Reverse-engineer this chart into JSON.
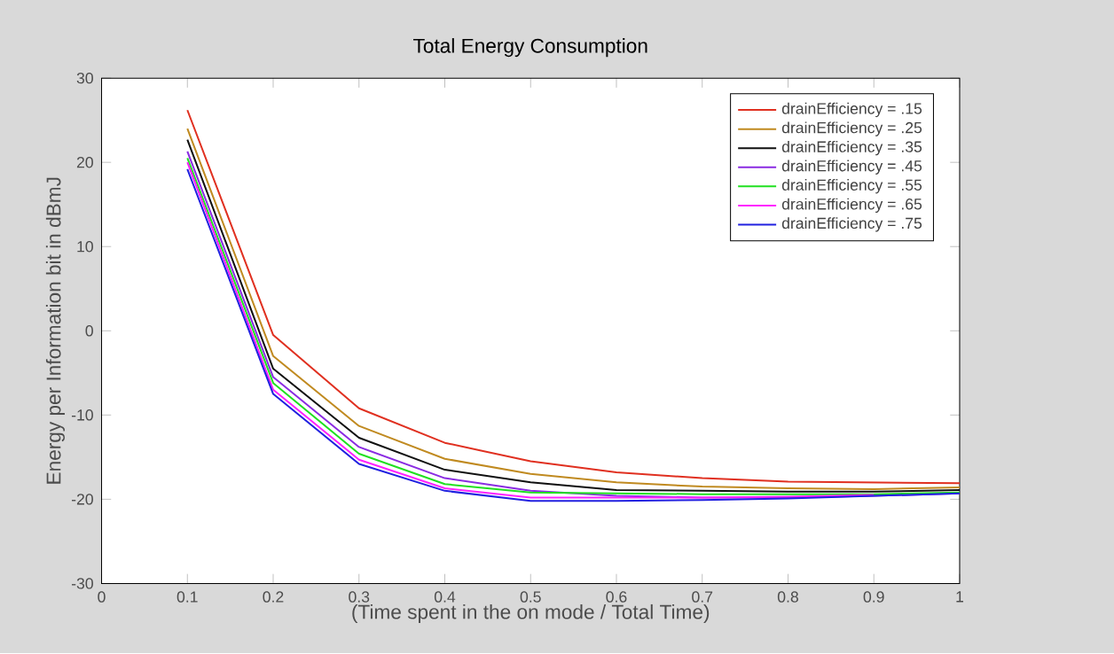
{
  "chart_data": {
    "type": "line",
    "title": "Total Energy Consumption",
    "xlabel": "(Time spent in the on mode / Total Time)",
    "ylabel": "Energy per Information bit in dBmJ",
    "x": [
      0.1,
      0.2,
      0.3,
      0.4,
      0.5,
      0.6,
      0.7,
      0.8,
      0.9,
      1.0
    ],
    "series": [
      {
        "name": "drainEfficiency = .15",
        "color": "#e03020",
        "values": [
          26.2,
          -0.5,
          -9.2,
          -13.3,
          -15.5,
          -16.8,
          -17.5,
          -17.9,
          -18.0,
          -18.1
        ]
      },
      {
        "name": "drainEfficiency = .25",
        "color": "#c08a20",
        "values": [
          24.0,
          -3.0,
          -11.3,
          -15.2,
          -17.0,
          -18.0,
          -18.5,
          -18.7,
          -18.8,
          -18.6
        ]
      },
      {
        "name": "drainEfficiency = .35",
        "color": "#101010",
        "values": [
          22.7,
          -4.5,
          -12.7,
          -16.5,
          -18.0,
          -18.9,
          -19.0,
          -19.1,
          -19.1,
          -18.9
        ]
      },
      {
        "name": "drainEfficiency = .45",
        "color": "#8a2be2",
        "values": [
          21.3,
          -5.5,
          -13.8,
          -17.5,
          -19.0,
          -19.6,
          -19.8,
          -19.8,
          -19.6,
          -19.3
        ]
      },
      {
        "name": "drainEfficiency = .55",
        "color": "#20e020",
        "values": [
          20.5,
          -6.2,
          -14.6,
          -18.2,
          -19.2,
          -19.3,
          -19.4,
          -19.4,
          -19.4,
          -19.2
        ]
      },
      {
        "name": "drainEfficiency = .65",
        "color": "#ff20ff",
        "values": [
          20.0,
          -7.0,
          -15.3,
          -18.7,
          -19.8,
          -19.8,
          -19.8,
          -19.7,
          -19.5,
          null
        ]
      },
      {
        "name": "drainEfficiency = .75",
        "color": "#2020e0",
        "values": [
          19.2,
          -7.5,
          -15.8,
          -19.0,
          -20.2,
          -20.2,
          -20.1,
          -19.9,
          -19.6,
          -19.3
        ]
      }
    ],
    "xlim": [
      0,
      1
    ],
    "ylim": [
      -30,
      30
    ],
    "xticks": [
      0,
      0.1,
      0.2,
      0.3,
      0.4,
      0.5,
      0.6,
      0.7,
      0.8,
      0.9,
      1
    ],
    "yticks": [
      -30,
      -20,
      -10,
      0,
      10,
      20,
      30
    ],
    "grid": false,
    "legend": "top right",
    "marker": "none",
    "line_style": "solid"
  }
}
